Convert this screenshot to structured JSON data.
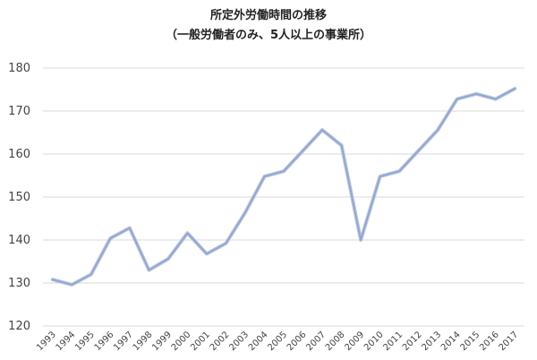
{
  "chart_data": {
    "type": "line",
    "title": "所定外労働時間の推移",
    "subtitle": "（一般労働者のみ、5人以上の事業所）",
    "xlabel": "",
    "ylabel": "",
    "ylim": [
      120,
      180
    ],
    "yticks": [
      "120",
      "130",
      "140",
      "150",
      "160",
      "170",
      "180"
    ],
    "grid": true,
    "x": [
      "1993",
      "1994",
      "1995",
      "1996",
      "1997",
      "1998",
      "1999",
      "2000",
      "2001",
      "2002",
      "2003",
      "2004",
      "2005",
      "2006",
      "2007",
      "2008",
      "2009",
      "2010",
      "2011",
      "2012",
      "2013",
      "2014",
      "2015",
      "2016",
      "2017"
    ],
    "series": [
      {
        "values": [
          130.8,
          129.6,
          132.0,
          140.4,
          142.8,
          133.0,
          135.6,
          141.6,
          136.8,
          139.2,
          146.4,
          154.8,
          156.0,
          160.8,
          165.6,
          162.0,
          140.0,
          154.8,
          156.0,
          160.8,
          165.6,
          172.8,
          174.0,
          172.8,
          175.2
        ],
        "color": "#8ea4cf"
      }
    ]
  }
}
